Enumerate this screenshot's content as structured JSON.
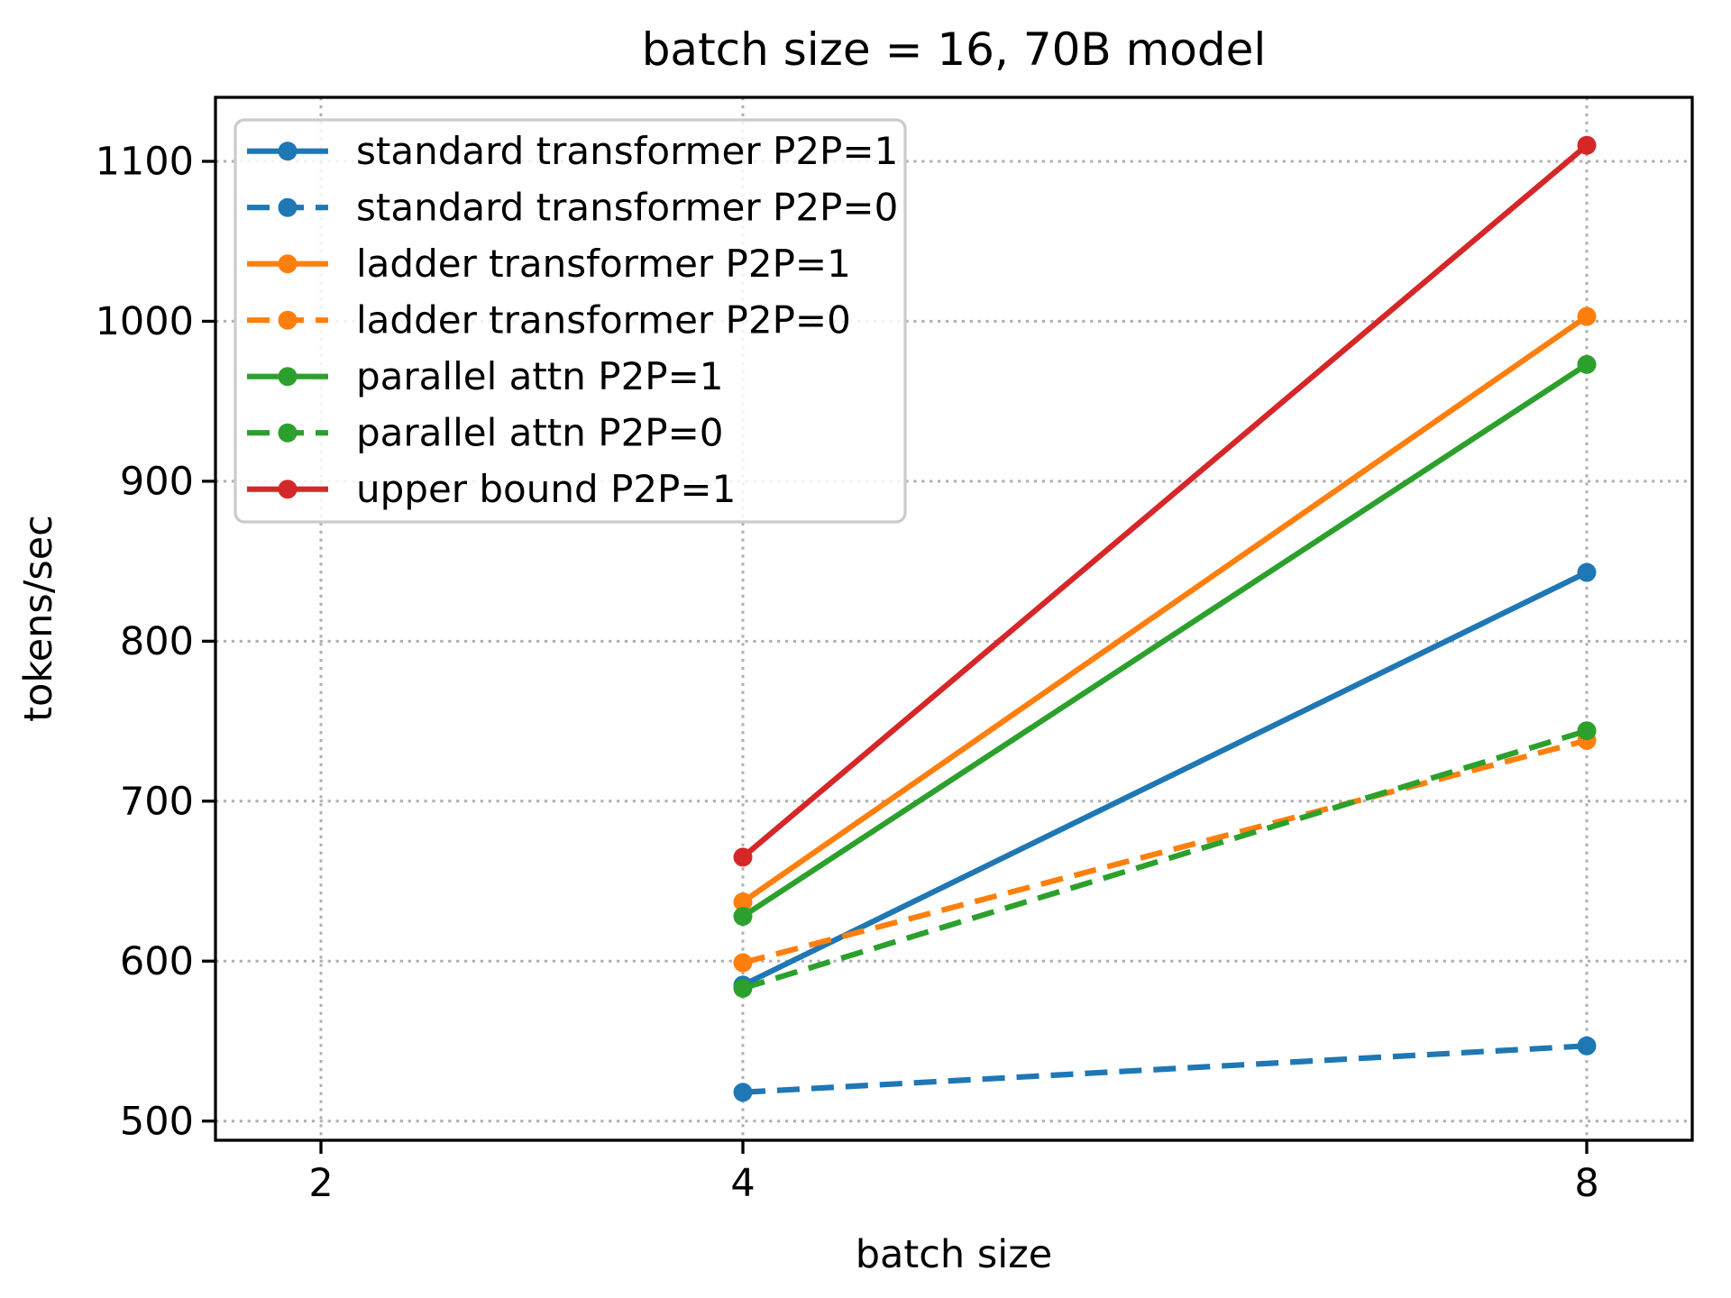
{
  "chart_data": {
    "type": "line",
    "title": "batch size = 16, 70B model",
    "xlabel": "batch size",
    "ylabel": "tokens/sec",
    "x": [
      4,
      8
    ],
    "xticks": [
      2,
      4,
      8
    ],
    "yticks": [
      500,
      600,
      700,
      800,
      900,
      1000,
      1100
    ],
    "xlim": [
      1.5,
      8.5
    ],
    "ylim": [
      488,
      1140
    ],
    "grid": true,
    "grid_style": "dotted",
    "legend_position": "upper-left",
    "colors": {
      "blue": "#1f77b4",
      "orange": "#ff7f0e",
      "green": "#2ca02c",
      "red": "#d62728",
      "grid": "#b0b0b0",
      "legend_border": "#cccccc"
    },
    "series": [
      {
        "name": "standard transformer P2P=1",
        "color": "#1f77b4",
        "dash": "solid",
        "values": [
          585,
          843
        ]
      },
      {
        "name": "standard transformer P2P=0",
        "color": "#1f77b4",
        "dash": "dashed",
        "values": [
          518,
          547
        ]
      },
      {
        "name": "ladder transformer P2P=1",
        "color": "#ff7f0e",
        "dash": "solid",
        "values": [
          637,
          1003
        ]
      },
      {
        "name": "ladder transformer P2P=0",
        "color": "#ff7f0e",
        "dash": "dashed",
        "values": [
          599,
          738
        ]
      },
      {
        "name": "parallel attn P2P=1",
        "color": "#2ca02c",
        "dash": "solid",
        "values": [
          628,
          973
        ]
      },
      {
        "name": "parallel attn P2P=0",
        "color": "#2ca02c",
        "dash": "dashed",
        "values": [
          583,
          744
        ]
      },
      {
        "name": "upper bound P2P=1",
        "color": "#d62728",
        "dash": "solid",
        "values": [
          665,
          1110
        ]
      }
    ]
  }
}
